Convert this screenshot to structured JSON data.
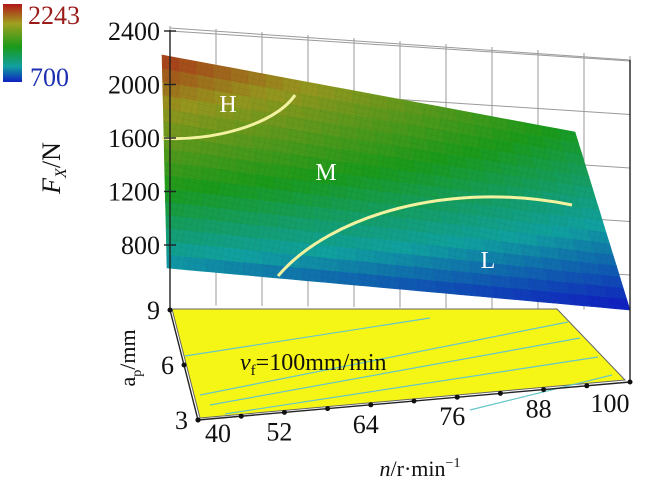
{
  "colorbar": {
    "max_label": "2243",
    "min_label": "700",
    "max_color": "#9b1b1b",
    "min_color": "#1d2fb0"
  },
  "chart_data": {
    "type": "surface",
    "axes": {
      "x": {
        "label_var": "n",
        "label_unit": "/r·min",
        "label_exp": "−1",
        "ticks": [
          "40",
          "52",
          "64",
          "76",
          "88",
          "100"
        ],
        "range": [
          40,
          100
        ]
      },
      "y": {
        "label_var": "a",
        "label_sub": "p",
        "label_unit": "/mm",
        "ticks": [
          "3",
          "6",
          "9"
        ],
        "range": [
          3,
          9
        ]
      },
      "z": {
        "label_var": "F",
        "label_sub": "X",
        "label_unit": "/N",
        "ticks": [
          "800",
          "1200",
          "1600",
          "2000",
          "2400"
        ],
        "range": [
          700,
          2400
        ]
      }
    },
    "surface_corners": [
      {
        "n": 40,
        "ap": 9,
        "Fx": 2160
      },
      {
        "n": 100,
        "ap": 9,
        "Fx": 1360
      },
      {
        "n": 40,
        "ap": 3,
        "Fx": 950
      },
      {
        "n": 100,
        "ap": 3,
        "Fx": 680
      }
    ],
    "regions": [
      "H",
      "M",
      "L"
    ],
    "annotation": {
      "var": "v",
      "sub": "f",
      "text": "=100mm/min"
    },
    "contour_color": "#f2f2a0",
    "floor_color": "#f6f616",
    "grid": true
  }
}
